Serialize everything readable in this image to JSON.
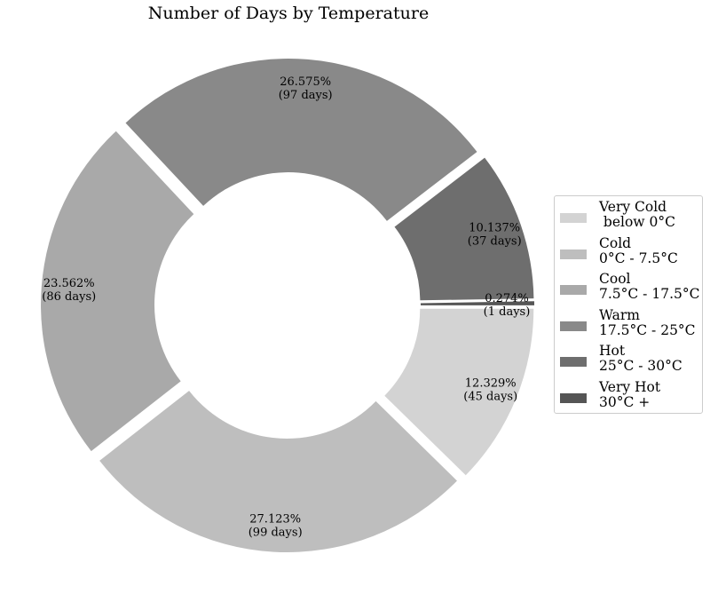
{
  "chart_data": {
    "type": "pie",
    "donut": true,
    "title": "Number of Days by Temperature",
    "start_angle_deg": 0,
    "direction": "clockwise",
    "slices": [
      {
        "label": "Very Cold\n below 0°C",
        "value": 45,
        "percent_label": "12.329%",
        "days_label": "(45 days)",
        "color": "#d3d3d3"
      },
      {
        "label": "Cold\n0°C - 7.5°C",
        "value": 99,
        "percent_label": "27.123%",
        "days_label": "(99 days)",
        "color": "#bebebe"
      },
      {
        "label": "Cool\n7.5°C - 17.5°C",
        "value": 86,
        "percent_label": "23.562%",
        "days_label": "(86 days)",
        "color": "#a9a9a9"
      },
      {
        "label": "Warm\n17.5°C - 25°C",
        "value": 97,
        "percent_label": "26.575%",
        "days_label": "(97 days)",
        "color": "#898989"
      },
      {
        "label": "Hot\n25°C - 30°C",
        "value": 37,
        "percent_label": "10.137%",
        "days_label": "(37 days)",
        "color": "#6e6e6e"
      },
      {
        "label": "Very Hot\n30°C +",
        "value": 1,
        "percent_label": "0.274%",
        "days_label": "(1 days)",
        "color": "#555555"
      }
    ],
    "legend_position": "right"
  }
}
